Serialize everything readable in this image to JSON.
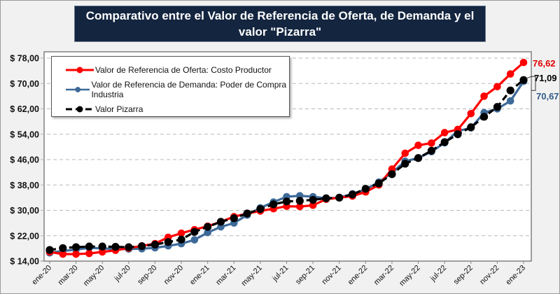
{
  "chart_data": {
    "type": "line",
    "title": "Comparativo entre el Valor de Referencia de Oferta, de Demanda y el valor \"Pizarra\"",
    "xlabel": "",
    "ylabel": "",
    "ylim": [
      14,
      78
    ],
    "grid": true,
    "legend_position": "top-left",
    "y_ticks": [
      "$ 14,00",
      "$ 22,00",
      "$ 30,00",
      "$ 38,00",
      "$ 46,00",
      "$ 54,00",
      "$ 62,00",
      "$ 70,00",
      "$ 78,00"
    ],
    "y_tick_values": [
      14,
      22,
      30,
      38,
      46,
      54,
      62,
      70,
      78
    ],
    "x_tick_labels": [
      "ene-20",
      "mar-20",
      "may-20",
      "jul-20",
      "sep-20",
      "nov-20",
      "ene-21",
      "mar-21",
      "may-21",
      "jul-21",
      "sep-21",
      "nov-21",
      "ene-22",
      "mar-22",
      "may-22",
      "jul-22",
      "sep-22",
      "nov-22",
      "ene-23"
    ],
    "x": [
      "ene-20",
      "feb-20",
      "mar-20",
      "abr-20",
      "may-20",
      "jun-20",
      "jul-20",
      "ago-20",
      "sep-20",
      "oct-20",
      "nov-20",
      "dic-20",
      "ene-21",
      "feb-21",
      "mar-21",
      "abr-21",
      "may-21",
      "jun-21",
      "jul-21",
      "ago-21",
      "sep-21",
      "oct-21",
      "nov-21",
      "dic-21",
      "ene-22",
      "feb-22",
      "mar-22",
      "abr-22",
      "may-22",
      "jun-22",
      "jul-22",
      "ago-22",
      "sep-22",
      "oct-22",
      "nov-22",
      "dic-22",
      "ene-23"
    ],
    "series": [
      {
        "name": "Valor de Referencia de Oferta: Costo Productor",
        "color": "#ff0000",
        "dashed": false,
        "values": [
          16.9,
          16.2,
          16.2,
          16.4,
          16.9,
          17.4,
          18.1,
          18.8,
          19.5,
          21.5,
          22.8,
          23.9,
          25.0,
          26.4,
          28.0,
          29.0,
          29.8,
          30.5,
          31.3,
          31.2,
          31.6,
          33.5,
          34.0,
          34.5,
          35.8,
          38.0,
          43.0,
          48.0,
          50.5,
          51.2,
          54.5,
          55.5,
          60.5,
          66.0,
          69.0,
          73.0,
          76.62
        ],
        "end_label": "76,62"
      },
      {
        "name": "Valor de Referencia de Demanda: Poder de Compra Industria",
        "color": "#3d6a99",
        "dashed": false,
        "values": [
          16.6,
          17.2,
          17.6,
          18.2,
          18.0,
          17.8,
          17.8,
          17.9,
          18.2,
          18.8,
          19.5,
          20.7,
          23.0,
          24.8,
          26.0,
          28.5,
          30.8,
          32.6,
          34.3,
          34.6,
          34.3,
          33.8,
          34.0,
          35.2,
          36.6,
          38.9,
          41.8,
          45.5,
          46.5,
          48.5,
          51.3,
          55.0,
          56.0,
          60.8,
          62.0,
          64.5,
          70.67
        ],
        "end_label": "70,67"
      },
      {
        "name": "Valor Pizarra",
        "color": "#000000",
        "dashed": true,
        "values": [
          17.5,
          18.1,
          18.4,
          18.6,
          18.6,
          18.5,
          18.4,
          18.7,
          19.2,
          20.0,
          20.8,
          23.2,
          24.8,
          26.4,
          27.5,
          29.0,
          30.4,
          31.9,
          32.8,
          33.0,
          33.3,
          33.8,
          34.0,
          35.0,
          36.8,
          38.5,
          41.4,
          44.7,
          46.5,
          48.8,
          51.5,
          54.0,
          56.2,
          59.5,
          62.6,
          67.8,
          71.09
        ],
        "end_label": "71,09"
      }
    ]
  }
}
